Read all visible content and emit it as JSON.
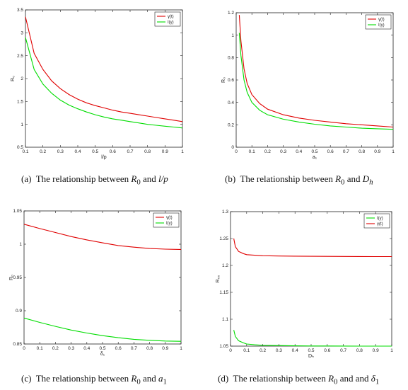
{
  "charts": [
    {
      "caption_tag": "(a)",
      "caption_text": "The relationship between",
      "caption_r": "R",
      "caption_sub": "0",
      "caption_mid": "and",
      "caption_var": "l/p",
      "caption_var_sub": ""
    },
    {
      "caption_tag": "(b)",
      "caption_text": "The relationship between",
      "caption_r": "R",
      "caption_sub": "0",
      "caption_mid": "and",
      "caption_var": "D",
      "caption_var_sub": "h"
    },
    {
      "caption_tag": "(c)",
      "caption_text": "The relationship between",
      "caption_r": "R",
      "caption_sub": "0",
      "caption_mid": "and",
      "caption_var": "a",
      "caption_var_sub": "1"
    },
    {
      "caption_tag": "(d)",
      "caption_text": "The relationship between",
      "caption_r": "R",
      "caption_sub": "0",
      "caption_mid": "and and",
      "caption_var": "δ",
      "caption_var_sub": "1"
    }
  ],
  "chart_data": [
    {
      "type": "line",
      "xlabel": "l/p",
      "ylabel": "R₀",
      "xlim": [
        0.1,
        1
      ],
      "ylim": [
        0.5,
        3.5
      ],
      "xticks": [
        "0.1",
        "0.2",
        "0.3",
        "0.4",
        "0.5",
        "0.6",
        "0.7",
        "0.8",
        "0.9",
        "1"
      ],
      "yticks": [
        "0.5",
        "1",
        "1.5",
        "2",
        "2.5",
        "3",
        "3.5"
      ],
      "legend": "top-right",
      "series": [
        {
          "name": "γ(t)",
          "color": "#e00000",
          "x": [
            0.1,
            0.15,
            0.2,
            0.25,
            0.3,
            0.35,
            0.4,
            0.45,
            0.5,
            0.55,
            0.6,
            0.65,
            0.7,
            0.75,
            0.8,
            0.85,
            0.9,
            0.95,
            1.0
          ],
          "y": [
            3.35,
            2.55,
            2.2,
            1.95,
            1.78,
            1.65,
            1.55,
            1.47,
            1.41,
            1.36,
            1.31,
            1.27,
            1.24,
            1.21,
            1.18,
            1.15,
            1.12,
            1.09,
            1.06
          ]
        },
        {
          "name": "I(γ)",
          "color": "#00dd00",
          "x": [
            0.1,
            0.15,
            0.2,
            0.25,
            0.3,
            0.35,
            0.4,
            0.45,
            0.5,
            0.55,
            0.6,
            0.65,
            0.7,
            0.75,
            0.8,
            0.85,
            0.9,
            0.95,
            1.0
          ],
          "y": [
            2.9,
            2.2,
            1.88,
            1.68,
            1.53,
            1.42,
            1.34,
            1.27,
            1.21,
            1.16,
            1.12,
            1.09,
            1.06,
            1.03,
            1.0,
            0.98,
            0.96,
            0.94,
            0.92
          ]
        }
      ]
    },
    {
      "type": "line",
      "xlabel": "a₁",
      "ylabel": "R₀",
      "xlim": [
        0,
        1
      ],
      "ylim": [
        0,
        1.2
      ],
      "xticks": [
        "0",
        "0.1",
        "0.2",
        "0.3",
        "0.4",
        "0.5",
        "0.6",
        "0.7",
        "0.8",
        "0.9",
        "1"
      ],
      "yticks": [
        "0",
        "0.2",
        "0.4",
        "0.6",
        "0.8",
        "1",
        "1.2"
      ],
      "legend": "top-right",
      "series": [
        {
          "name": "γ(t)",
          "color": "#e00000",
          "x": [
            0.02,
            0.03,
            0.05,
            0.07,
            0.1,
            0.15,
            0.2,
            0.3,
            0.4,
            0.5,
            0.6,
            0.7,
            0.8,
            0.9,
            1.0
          ],
          "y": [
            1.18,
            0.95,
            0.7,
            0.57,
            0.47,
            0.39,
            0.34,
            0.29,
            0.26,
            0.24,
            0.225,
            0.21,
            0.2,
            0.19,
            0.18
          ]
        },
        {
          "name": "I(γ)",
          "color": "#00dd00",
          "x": [
            0.02,
            0.03,
            0.05,
            0.07,
            0.1,
            0.15,
            0.2,
            0.3,
            0.4,
            0.5,
            0.6,
            0.7,
            0.8,
            0.9,
            1.0
          ],
          "y": [
            1.02,
            0.82,
            0.6,
            0.49,
            0.4,
            0.33,
            0.29,
            0.25,
            0.225,
            0.205,
            0.19,
            0.18,
            0.17,
            0.165,
            0.16
          ]
        }
      ]
    },
    {
      "type": "line",
      "xlabel": "δ₁",
      "ylabel": "R₀",
      "xlim": [
        0,
        1
      ],
      "ylim": [
        0.85,
        1.05
      ],
      "xticks": [
        "0",
        "0.1",
        "0.2",
        "0.3",
        "0.4",
        "0.5",
        "0.6",
        "0.7",
        "0.8",
        "0.9",
        "1"
      ],
      "yticks": [
        "0.85",
        "0.9",
        "0.95",
        "1",
        "1.05"
      ],
      "legend": "top-right",
      "series": [
        {
          "name": "γ(t)",
          "color": "#e00000",
          "x": [
            0,
            0.1,
            0.2,
            0.3,
            0.4,
            0.5,
            0.6,
            0.7,
            0.8,
            0.9,
            1.0
          ],
          "y": [
            1.03,
            1.0235,
            1.0175,
            1.0115,
            1.0065,
            1.002,
            0.998,
            0.9955,
            0.9935,
            0.9925,
            0.992
          ]
        },
        {
          "name": "I(γ)",
          "color": "#00dd00",
          "x": [
            0,
            0.1,
            0.2,
            0.3,
            0.4,
            0.5,
            0.6,
            0.7,
            0.8,
            0.9,
            1.0
          ],
          "y": [
            0.889,
            0.8825,
            0.8765,
            0.871,
            0.8665,
            0.8625,
            0.8595,
            0.857,
            0.8555,
            0.8545,
            0.854
          ]
        }
      ]
    },
    {
      "type": "line",
      "xlabel": "Dₕ",
      "ylabel": "R₀₀",
      "xlim": [
        0,
        1
      ],
      "ylim": [
        1.05,
        1.3
      ],
      "xticks": [
        "0",
        "0.1",
        "0.2",
        "0.3",
        "0.4",
        "0.5",
        "0.6",
        "0.7",
        "0.8",
        "0.9",
        "1"
      ],
      "yticks": [
        "1.05",
        "1.1",
        "1.15",
        "1.2",
        "1.25",
        "1.3"
      ],
      "legend": "top-right",
      "series": [
        {
          "name": "I(γ)",
          "color": "#00dd00",
          "x": [
            0.02,
            0.03,
            0.05,
            0.08,
            0.1,
            0.15,
            0.2,
            0.3,
            0.4,
            0.5,
            0.6,
            0.7,
            0.8,
            0.9,
            1.0
          ],
          "y": [
            1.08,
            1.068,
            1.06,
            1.056,
            1.054,
            1.0525,
            1.0515,
            1.051,
            1.0505,
            1.0503,
            1.0502,
            1.0501,
            1.05,
            1.05,
            1.05
          ]
        },
        {
          "name": "γ(t)",
          "color": "#e00000",
          "x": [
            0.02,
            0.03,
            0.05,
            0.08,
            0.1,
            0.15,
            0.2,
            0.3,
            0.4,
            0.5,
            0.6,
            0.7,
            0.8,
            0.9,
            1.0
          ],
          "y": [
            1.25,
            1.235,
            1.226,
            1.222,
            1.22,
            1.219,
            1.218,
            1.2175,
            1.2172,
            1.217,
            1.2168,
            1.2167,
            1.2166,
            1.2165,
            1.2165
          ]
        }
      ]
    }
  ]
}
